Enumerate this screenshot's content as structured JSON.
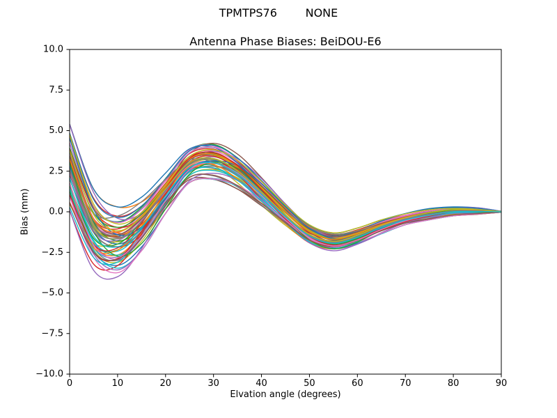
{
  "figure": {
    "suptitle": "TPMTPS76        NONE"
  },
  "chart_data": {
    "type": "line",
    "title": "Antenna Phase Biases: BeiDOU-E6",
    "xlabel": "Elvation angle (degrees)",
    "ylabel": "Bias (mm)",
    "xlim": [
      0,
      90
    ],
    "ylim": [
      -10.0,
      10.0
    ],
    "xticks": [
      0,
      10,
      20,
      30,
      40,
      50,
      60,
      70,
      80,
      90
    ],
    "xtick_labels": [
      "0",
      "10",
      "20",
      "30",
      "40",
      "50",
      "60",
      "70",
      "80",
      "90"
    ],
    "yticks": [
      10.0,
      7.5,
      5.0,
      2.5,
      0.0,
      -2.5,
      -5.0,
      -7.5,
      -10.0
    ],
    "ytick_labels": [
      "10.0",
      "7.5",
      "5.0",
      "2.5",
      "0.0",
      "−2.5",
      "−5.0",
      "−7.5",
      "−10.0"
    ],
    "grid": false,
    "legend": null,
    "n_series": 60,
    "x": [
      0,
      5,
      10,
      15,
      20,
      25,
      30,
      35,
      40,
      45,
      50,
      55,
      60,
      65,
      70,
      75,
      80,
      85,
      90
    ],
    "ensemble": {
      "description": "Bundle of per-antenna/per-satellite phase-bias curves; mean with upper/lower envelope read from the plot",
      "mean": [
        2.5,
        -1.1,
        -1.8,
        -0.7,
        1.2,
        2.9,
        3.2,
        2.5,
        1.2,
        -0.2,
        -1.4,
        -1.85,
        -1.5,
        -0.9,
        -0.45,
        -0.15,
        0.05,
        0.05,
        0.0
      ],
      "upper": [
        5.4,
        1.4,
        0.3,
        0.9,
        2.5,
        4.2,
        4.5,
        3.6,
        2.1,
        0.5,
        -0.8,
        -1.3,
        -1.0,
        -0.5,
        -0.1,
        0.2,
        0.3,
        0.25,
        0.03
      ],
      "lower": [
        -0.5,
        -3.6,
        -4.0,
        -2.4,
        -0.1,
        1.8,
        2.0,
        1.4,
        0.3,
        -0.9,
        -2.0,
        -2.4,
        -2.0,
        -1.35,
        -0.8,
        -0.5,
        -0.25,
        -0.15,
        -0.03
      ]
    },
    "palette": [
      "#1f77b4",
      "#ff7f0e",
      "#2ca02c",
      "#d62728",
      "#9467bd",
      "#8c564b",
      "#e377c2",
      "#7f7f7f",
      "#bcbd22",
      "#17becf"
    ]
  }
}
